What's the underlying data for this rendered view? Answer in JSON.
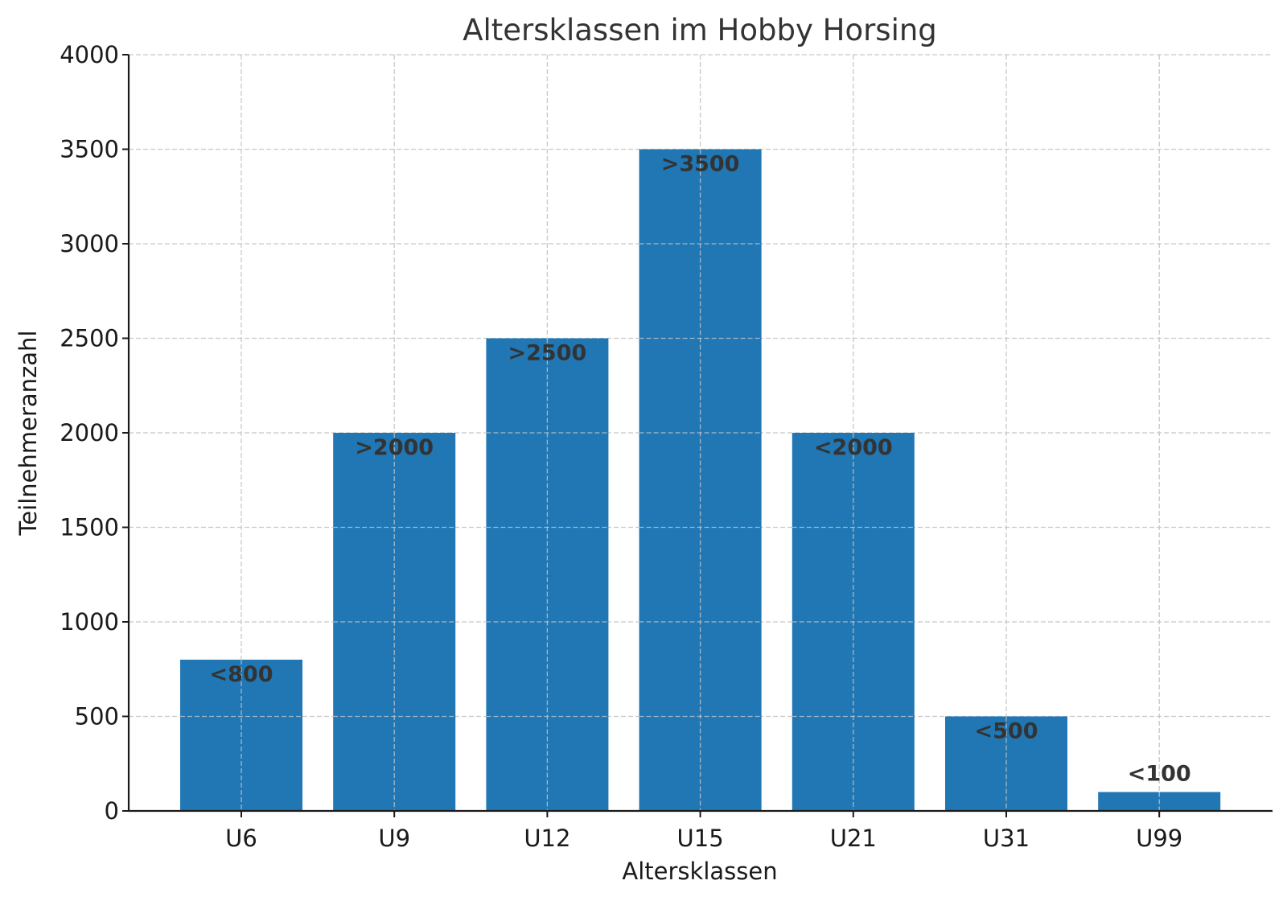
{
  "chart_data": {
    "type": "bar",
    "title": "Altersklassen im Hobby Horsing",
    "xlabel": "Altersklassen",
    "ylabel": "Teilnehmeranzahl",
    "categories": [
      "U6",
      "U9",
      "U12",
      "U15",
      "U21",
      "U31",
      "U99"
    ],
    "values": [
      800,
      2000,
      2500,
      3500,
      2000,
      500,
      100
    ],
    "bar_labels": [
      "<800",
      ">2000",
      ">2500",
      ">3500",
      "<2000",
      "<500",
      "<100"
    ],
    "ylim": [
      0,
      4000
    ],
    "yticks": [
      0,
      500,
      1000,
      1500,
      2000,
      2500,
      3000,
      3500,
      4000
    ],
    "grid": true,
    "bar_color": "#2077b4"
  }
}
